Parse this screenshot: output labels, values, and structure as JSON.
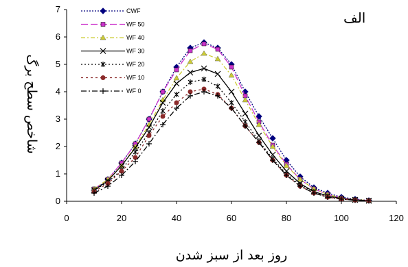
{
  "chart_data": {
    "type": "line",
    "panel_label": "الف",
    "xlabel": "روز بعد از سبز شدن",
    "ylabel": "شاخص سطح برگ",
    "xlim": [
      0,
      120
    ],
    "ylim": [
      0,
      7
    ],
    "x_ticks": [
      0,
      20,
      40,
      60,
      80,
      100,
      120
    ],
    "y_ticks": [
      0,
      1,
      2,
      3,
      4,
      5,
      6,
      7
    ],
    "grid": false,
    "legend_position": "top-left",
    "x": [
      10,
      15,
      20,
      25,
      30,
      35,
      40,
      45,
      50,
      55,
      60,
      65,
      70,
      75,
      80,
      85,
      90,
      95,
      100,
      105,
      110
    ],
    "series": [
      {
        "name": "CWF",
        "marker": "diamond",
        "color": "#00007f",
        "dash": "2,2",
        "values": [
          0.4,
          0.8,
          1.4,
          2.1,
          3.0,
          4.0,
          4.9,
          5.6,
          5.8,
          5.6,
          5.0,
          4.0,
          3.1,
          2.3,
          1.5,
          0.9,
          0.5,
          0.3,
          0.15,
          0.08,
          0.03
        ]
      },
      {
        "name": "WF 50",
        "marker": "square",
        "color": "#cc33cc",
        "dash": "10,4",
        "values": [
          0.45,
          0.8,
          1.4,
          2.1,
          3.0,
          4.0,
          4.8,
          5.5,
          5.75,
          5.55,
          4.9,
          3.85,
          2.9,
          2.05,
          1.35,
          0.8,
          0.45,
          0.25,
          0.12,
          0.06,
          0.03
        ]
      },
      {
        "name": "WF 40",
        "marker": "triangle",
        "color": "#cccc33",
        "dash": "6,3,2,3",
        "values": [
          0.45,
          0.8,
          1.3,
          2.0,
          2.8,
          3.7,
          4.5,
          5.1,
          5.4,
          5.2,
          4.6,
          3.7,
          2.8,
          2.0,
          1.3,
          0.8,
          0.45,
          0.25,
          0.12,
          0.06,
          0.03
        ]
      },
      {
        "name": "WF 30",
        "marker": "x",
        "color": "#000000",
        "dash": "",
        "values": [
          0.4,
          0.75,
          1.3,
          1.95,
          2.7,
          3.6,
          4.3,
          4.7,
          4.85,
          4.65,
          4.0,
          3.2,
          2.4,
          1.7,
          1.1,
          0.65,
          0.35,
          0.2,
          0.1,
          0.05,
          0.02
        ]
      },
      {
        "name": "WF 20",
        "marker": "star",
        "color": "#000000",
        "dash": "2,3",
        "values": [
          0.4,
          0.7,
          1.15,
          1.8,
          2.5,
          3.3,
          3.9,
          4.35,
          4.45,
          4.2,
          3.6,
          2.9,
          2.2,
          1.55,
          1.0,
          0.6,
          0.35,
          0.18,
          0.09,
          0.05,
          0.02
        ]
      },
      {
        "name": "WF 10",
        "marker": "circle",
        "color": "#8b2a2a",
        "dash": "3,4",
        "values": [
          0.35,
          0.65,
          1.1,
          1.6,
          2.4,
          3.1,
          3.6,
          4.0,
          4.1,
          3.9,
          3.4,
          2.75,
          2.15,
          1.5,
          0.95,
          0.55,
          0.3,
          0.15,
          0.08,
          0.04,
          0.02
        ]
      },
      {
        "name": "WF 0",
        "marker": "plus",
        "color": "#000000",
        "dash": "8,3,2,3",
        "values": [
          0.3,
          0.55,
          0.95,
          1.45,
          2.1,
          2.8,
          3.4,
          3.85,
          4.0,
          3.85,
          3.4,
          2.75,
          2.15,
          1.5,
          0.95,
          0.55,
          0.3,
          0.15,
          0.08,
          0.04,
          0.02
        ]
      }
    ]
  }
}
